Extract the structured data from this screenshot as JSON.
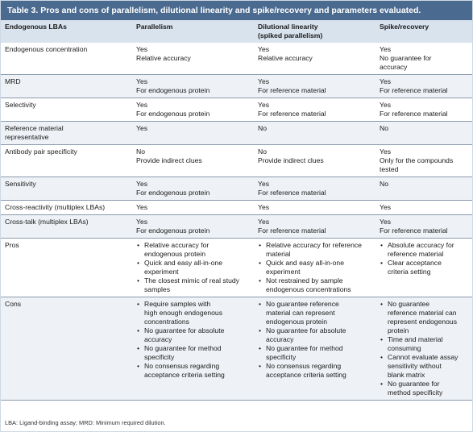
{
  "caption": "Table 3. Pros and cons of parallelism, dilutional linearity and spike/recovery and parameters evaluated.",
  "headers": [
    [
      "Endogenous LBAs"
    ],
    [
      "Parallelism"
    ],
    [
      "Dilutional linearity",
      "(spiked parallelism)"
    ],
    [
      "Spike/recovery"
    ]
  ],
  "rows": [
    {
      "label": [
        "Endogenous concentration"
      ],
      "cells": [
        [
          "Yes",
          "Relative accuracy"
        ],
        [
          "Yes",
          "Relative accuracy"
        ],
        [
          "Yes",
          "No guarantee for",
          "accuracy"
        ]
      ]
    },
    {
      "label": [
        "MRD"
      ],
      "cells": [
        [
          "Yes",
          "For endogenous protein"
        ],
        [
          "Yes",
          "For reference material"
        ],
        [
          "Yes",
          "For reference material"
        ]
      ]
    },
    {
      "label": [
        "Selectivity"
      ],
      "cells": [
        [
          "Yes",
          "For endogenous protein"
        ],
        [
          "Yes",
          "For reference material"
        ],
        [
          "Yes",
          "For reference material"
        ]
      ]
    },
    {
      "label": [
        "Reference material",
        "representative"
      ],
      "cells": [
        [
          "Yes"
        ],
        [
          "No"
        ],
        [
          "No"
        ]
      ]
    },
    {
      "label": [
        "Antibody pair specificity"
      ],
      "cells": [
        [
          "No",
          "Provide indirect clues"
        ],
        [
          "No",
          "Provide indirect clues"
        ],
        [
          "Yes",
          "Only for the compounds",
          "tested"
        ]
      ]
    },
    {
      "label": [
        "Sensitivity"
      ],
      "cells": [
        [
          "Yes",
          "For endogenous protein"
        ],
        [
          "Yes",
          "For reference material"
        ],
        [
          "No"
        ]
      ]
    },
    {
      "label": [
        "Cross-reactivity (multiplex LBAs)"
      ],
      "cells": [
        [
          "Yes"
        ],
        [
          "Yes"
        ],
        [
          "Yes"
        ]
      ]
    },
    {
      "label": [
        "Cross-talk (multiplex LBAs)"
      ],
      "cells": [
        [
          "Yes",
          "For endogenous protein"
        ],
        [
          "Yes",
          "For reference material"
        ],
        [
          "Yes",
          "For reference material"
        ]
      ]
    }
  ],
  "pros": {
    "label": "Pros",
    "cells": [
      [
        [
          "Relative accuracy for",
          "endogenous protein"
        ],
        [
          "Quick and easy all-in-one",
          "experiment"
        ],
        [
          "The closest mimic of real study",
          "samples"
        ]
      ],
      [
        [
          "Relative accuracy for reference",
          "material"
        ],
        [
          "Quick and easy all-in-one",
          "experiment"
        ],
        [
          "Not restrained by sample",
          "endogenous concentrations"
        ]
      ],
      [
        [
          "Absolute accuracy for",
          "reference material"
        ],
        [
          "Clear acceptance",
          "criteria setting"
        ]
      ]
    ]
  },
  "cons": {
    "label": "Cons",
    "cells": [
      [
        [
          "Require samples with",
          "high enough endogenous",
          "concentrations"
        ],
        [
          "No guarantee for absolute",
          "accuracy"
        ],
        [
          "No guarantee for method",
          "specificity"
        ],
        [
          "No consensus regarding",
          "acceptance criteria setting"
        ]
      ],
      [
        [
          "No guarantee reference",
          "material can represent",
          "endogenous protein"
        ],
        [
          "No guarantee for absolute",
          "accuracy"
        ],
        [
          "No guarantee for method",
          "specificity"
        ],
        [
          "No consensus regarding",
          "acceptance criteria setting"
        ]
      ],
      [
        [
          "No guarantee",
          "reference material can",
          "represent endogenous",
          "protein"
        ],
        [
          "Time and material",
          "consuming"
        ],
        [
          "Cannot evaluate assay",
          "sensitivity without",
          "blank matrix"
        ],
        [
          "No guarantee for",
          "method specificity"
        ]
      ]
    ]
  },
  "footnote": "LBA: Ligand-binding assay; MRD: Minimum required dilution."
}
